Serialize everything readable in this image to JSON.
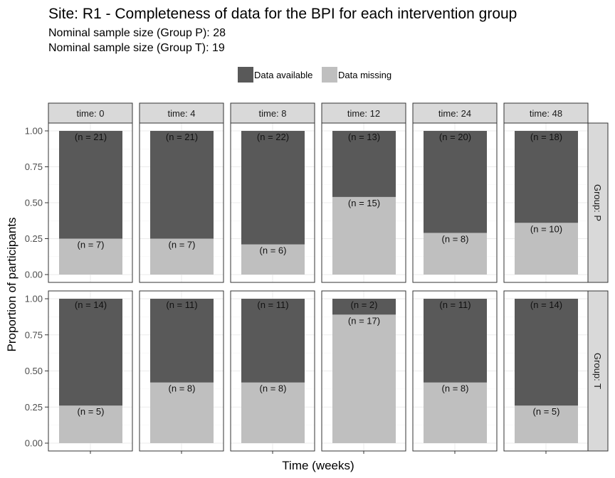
{
  "title": "Site: R1 - Completeness of data for the BPI for each intervention group",
  "subtitle_lines": [
    "Nominal sample size (Group P): 28",
    "Nominal sample size (Group T): 19"
  ],
  "legend": [
    {
      "label": "Data available",
      "color": "#595959"
    },
    {
      "label": "Data missing",
      "color": "#bfbfbf"
    }
  ],
  "colors": {
    "available": "#595959",
    "missing": "#bfbfbf",
    "strip": "#d9d9d9",
    "grid": "#ebebeb",
    "border": "#333333"
  },
  "chart_data": {
    "type": "bar",
    "stacked": true,
    "xlabel": "Time (weeks)",
    "ylabel": "Proportion of participants",
    "ylim": [
      0,
      1
    ],
    "yticks": [
      "0.00",
      "0.25",
      "0.50",
      "0.75",
      "1.00"
    ],
    "grid": true,
    "legend_position": "top",
    "facet_columns": [
      "time: 0",
      "time: 4",
      "time: 8",
      "time: 12",
      "time: 24",
      "time: 48"
    ],
    "facet_rows": [
      "Group: P",
      "Group: T"
    ],
    "panels": [
      {
        "row": 0,
        "col": 0,
        "available": 0.75,
        "missing": 0.25,
        "available_label": "(n = 21)",
        "missing_label": "(n = 7)"
      },
      {
        "row": 0,
        "col": 1,
        "available": 0.75,
        "missing": 0.25,
        "available_label": "(n = 21)",
        "missing_label": "(n = 7)"
      },
      {
        "row": 0,
        "col": 2,
        "available": 0.79,
        "missing": 0.21,
        "available_label": "(n = 22)",
        "missing_label": "(n = 6)"
      },
      {
        "row": 0,
        "col": 3,
        "available": 0.46,
        "missing": 0.54,
        "available_label": "(n = 13)",
        "missing_label": "(n = 15)"
      },
      {
        "row": 0,
        "col": 4,
        "available": 0.71,
        "missing": 0.29,
        "available_label": "(n = 20)",
        "missing_label": "(n = 8)"
      },
      {
        "row": 0,
        "col": 5,
        "available": 0.64,
        "missing": 0.36,
        "available_label": "(n = 18)",
        "missing_label": "(n = 10)"
      },
      {
        "row": 1,
        "col": 0,
        "available": 0.74,
        "missing": 0.26,
        "available_label": "(n = 14)",
        "missing_label": "(n = 5)"
      },
      {
        "row": 1,
        "col": 1,
        "available": 0.58,
        "missing": 0.42,
        "available_label": "(n = 11)",
        "missing_label": "(n = 8)"
      },
      {
        "row": 1,
        "col": 2,
        "available": 0.58,
        "missing": 0.42,
        "available_label": "(n = 11)",
        "missing_label": "(n = 8)"
      },
      {
        "row": 1,
        "col": 3,
        "available": 0.11,
        "missing": 0.89,
        "available_label": "(n = 2)",
        "missing_label": "(n = 17)"
      },
      {
        "row": 1,
        "col": 4,
        "available": 0.58,
        "missing": 0.42,
        "available_label": "(n = 11)",
        "missing_label": "(n = 8)"
      },
      {
        "row": 1,
        "col": 5,
        "available": 0.74,
        "missing": 0.26,
        "available_label": "(n = 14)",
        "missing_label": "(n = 5)"
      }
    ]
  }
}
